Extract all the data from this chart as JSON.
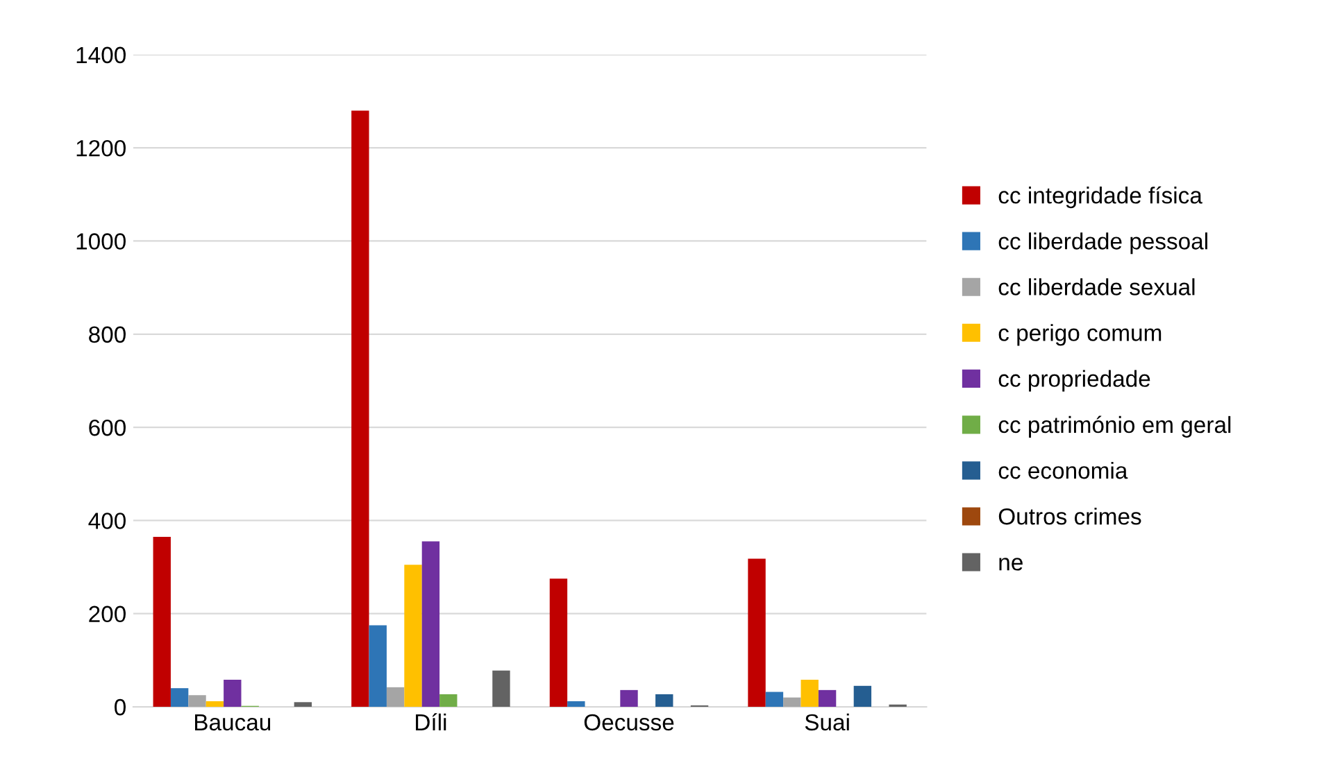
{
  "chart_data": {
    "type": "bar",
    "categories": [
      "Baucau",
      "Díli",
      "Oecusse",
      "Suai"
    ],
    "series": [
      {
        "name": "cc integridade física",
        "color": "#c00000",
        "values": [
          365,
          1280,
          275,
          318
        ]
      },
      {
        "name": "cc liberdade pessoal",
        "color": "#2e75b6",
        "values": [
          40,
          175,
          12,
          32
        ]
      },
      {
        "name": "cc liberdade sexual",
        "color": "#a5a5a5",
        "values": [
          25,
          42,
          null,
          20
        ]
      },
      {
        "name": "c perigo comum",
        "color": "#ffc000",
        "values": [
          12,
          305,
          0,
          58
        ]
      },
      {
        "name": "cc propriedade",
        "color": "#7030a0",
        "values": [
          58,
          355,
          36,
          36
        ]
      },
      {
        "name": "cc património em geral",
        "color": "#70ad47",
        "values": [
          2,
          27,
          0,
          0
        ]
      },
      {
        "name": "cc economia",
        "color": "#255e91",
        "values": [
          0,
          0,
          27,
          45
        ]
      },
      {
        "name": "Outros crimes",
        "color": "#9e480e",
        "values": [
          0,
          0,
          0,
          0
        ]
      },
      {
        "name": "ne",
        "color": "#636363",
        "values": [
          10,
          78,
          3,
          5
        ]
      }
    ],
    "ylim": [
      0,
      1400
    ],
    "yticks": [
      0,
      200,
      400,
      600,
      800,
      1000,
      1200,
      1400
    ],
    "grid": "y",
    "legend": "right"
  }
}
